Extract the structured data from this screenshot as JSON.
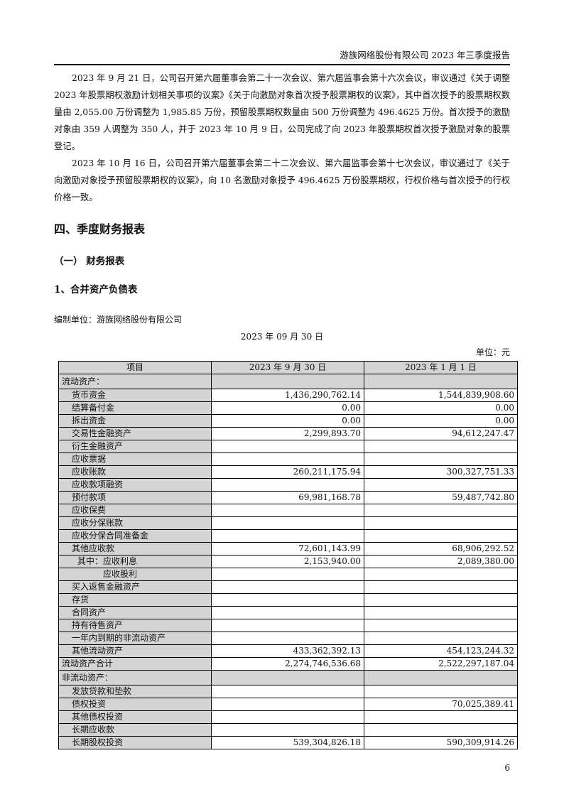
{
  "header": "游族网络股份有限公司 2023 年三季度报告",
  "paragraphs": [
    "2023 年 9 月 21 日，公司召开第六届董事会第二十一次会议、第六届监事会第十六次会议，审议通过《关于调整 2023 年股票期权激励计划相关事项的议案》《关于向激励对象首次授予股票期权的议案》，其中首次授予的股票期权数量由 2,055.00 万份调整为 1,985.85 万份，预留股票期权数量由 500 万份调整为 496.4625 万份。首次授予的激励对象由 359 人调整为 350 人，并于 2023 年 10 月 9 日，公司完成了向 2023 年股票期权首次授予激励对象的股票登记。",
    "2023 年 10 月 16 日，公司召开第六届董事会第二十二次会议、第六届监事会第十七次会议，审议通过了《关于向激励对象授予预留股票期权的议案》，向 10 名激励对象授予 496.4625 万份股票期权，行权价格与首次授予的行权价格一致。"
  ],
  "h1": "四、季度财务报表",
  "h2": "（一） 财务报表",
  "h3": "1、合并资产负债表",
  "prepared_by": "编制单位：游族网络股份有限公司",
  "report_date": "2023 年 09 月 30 日",
  "currency": "单位：元",
  "table": {
    "headers": [
      "项目",
      "2023 年 9 月 30 日",
      "2023 年 1 月 1 日"
    ],
    "rows": [
      {
        "label": "流动资产：",
        "a": "",
        "b": "",
        "type": "sec"
      },
      {
        "label": "货币资金",
        "a": "1,436,290,762.14",
        "b": "1,544,839,908.60",
        "type": "i1"
      },
      {
        "label": "结算备付金",
        "a": "0.00",
        "b": "0.00",
        "type": "i1"
      },
      {
        "label": "拆出资金",
        "a": "0.00",
        "b": "0.00",
        "type": "i1"
      },
      {
        "label": "交易性金融资产",
        "a": "2,299,893.70",
        "b": "94,612,247.47",
        "type": "i1"
      },
      {
        "label": "衍生金融资产",
        "a": "",
        "b": "",
        "type": "i1"
      },
      {
        "label": "应收票据",
        "a": "",
        "b": "",
        "type": "i1"
      },
      {
        "label": "应收账款",
        "a": "260,211,175.94",
        "b": "300,327,751.33",
        "type": "i1"
      },
      {
        "label": "应收款项融资",
        "a": "",
        "b": "",
        "type": "i1"
      },
      {
        "label": "预付款项",
        "a": "69,981,168.78",
        "b": "59,487,742.80",
        "type": "i1"
      },
      {
        "label": "应收保费",
        "a": "",
        "b": "",
        "type": "i1"
      },
      {
        "label": "应收分保账款",
        "a": "",
        "b": "",
        "type": "i1"
      },
      {
        "label": "应收分保合同准备金",
        "a": "",
        "b": "",
        "type": "i1"
      },
      {
        "label": "其他应收款",
        "a": "72,601,143.99",
        "b": "68,906,292.52",
        "type": "i1"
      },
      {
        "label": "其中：应收利息",
        "a": "2,153,940.00",
        "b": "2,089,380.00",
        "type": "i2"
      },
      {
        "label": "应收股利",
        "a": "",
        "b": "",
        "type": "i3"
      },
      {
        "label": "买入返售金融资产",
        "a": "",
        "b": "",
        "type": "i1"
      },
      {
        "label": "存货",
        "a": "",
        "b": "",
        "type": "i1"
      },
      {
        "label": "合同资产",
        "a": "",
        "b": "",
        "type": "i1"
      },
      {
        "label": "持有待售资产",
        "a": "",
        "b": "",
        "type": "i1"
      },
      {
        "label": "一年内到期的非流动资产",
        "a": "",
        "b": "",
        "type": "i1"
      },
      {
        "label": "其他流动资产",
        "a": "433,362,392.13",
        "b": "454,123,244.32",
        "type": "i1"
      },
      {
        "label": "流动资产合计",
        "a": "2,274,746,536.68",
        "b": "2,522,297,187.04",
        "type": "i0"
      },
      {
        "label": "非流动资产：",
        "a": "",
        "b": "",
        "type": "sec"
      },
      {
        "label": "发放贷款和垫款",
        "a": "",
        "b": "",
        "type": "i1"
      },
      {
        "label": "债权投资",
        "a": "",
        "b": "70,025,389.41",
        "type": "i1"
      },
      {
        "label": "其他债权投资",
        "a": "",
        "b": "",
        "type": "i1"
      },
      {
        "label": "长期应收款",
        "a": "",
        "b": "",
        "type": "i1"
      },
      {
        "label": "长期股权投资",
        "a": "539,304,826.18",
        "b": "590,309,914.26",
        "type": "i1"
      }
    ]
  },
  "page_number": "6"
}
